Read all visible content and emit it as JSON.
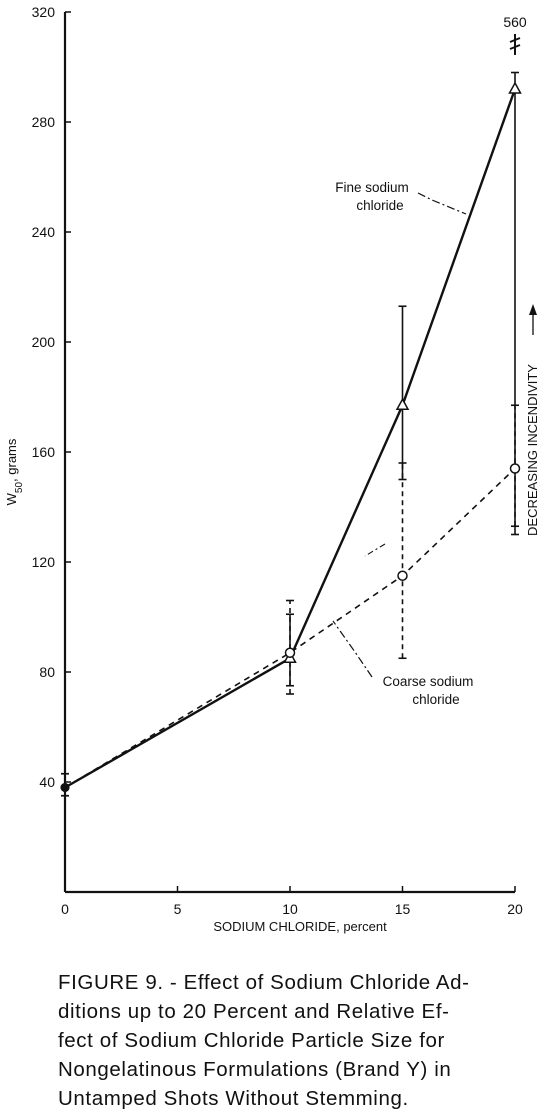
{
  "chart_data": {
    "type": "line",
    "xlabel": "SODIUM CHLORIDE, percent",
    "ylabel": "W50, grams",
    "ylabel_main": "W",
    "ylabel_sub": "50",
    "ylabel_rest": ", grams",
    "right_label": "DECREASING INCENDIVITY",
    "xlim": [
      0,
      20
    ],
    "ylim": [
      0,
      320
    ],
    "x_ticks": [
      0,
      5,
      10,
      15,
      20
    ],
    "y_ticks": [
      40,
      80,
      120,
      160,
      200,
      240,
      280,
      320
    ],
    "top_value_label": "560",
    "series": [
      {
        "name": "Fine sodium chloride",
        "style": "solid",
        "marker": "triangle",
        "points": [
          {
            "x": 0,
            "y": 38,
            "lo": 35,
            "hi": 43
          },
          {
            "x": 10,
            "y": 85,
            "lo": 75,
            "hi": 101
          },
          {
            "x": 15,
            "y": 177,
            "lo": 150,
            "hi": 213
          },
          {
            "x": 20,
            "y": 292,
            "lo": 130,
            "hi": 298
          }
        ]
      },
      {
        "name": "Coarse sodium chloride",
        "style": "dashed",
        "marker": "circle",
        "points": [
          {
            "x": 0,
            "y": 38,
            "lo": 35,
            "hi": 43
          },
          {
            "x": 10,
            "y": 87,
            "lo": 72,
            "hi": 106
          },
          {
            "x": 15,
            "y": 115,
            "lo": 85,
            "hi": 156
          },
          {
            "x": 20,
            "y": 154,
            "lo": 133,
            "hi": 177
          }
        ]
      }
    ],
    "annotations": [
      {
        "series": "Fine sodium chloride",
        "lines": [
          "Fine sodium",
          "chloride"
        ]
      },
      {
        "series": "Coarse sodium chloride",
        "lines": [
          "Coarse sodium",
          "chloride"
        ]
      }
    ]
  },
  "caption": {
    "lines": [
      "FIGURE 9. - Effect of Sodium Chloride Ad-",
      "ditions up to 20 Percent and Relative Ef-",
      "fect of Sodium Chloride Particle Size for",
      "Nongelatinous Formulations (Brand Y) in",
      "Untamped Shots Without Stemming."
    ]
  }
}
